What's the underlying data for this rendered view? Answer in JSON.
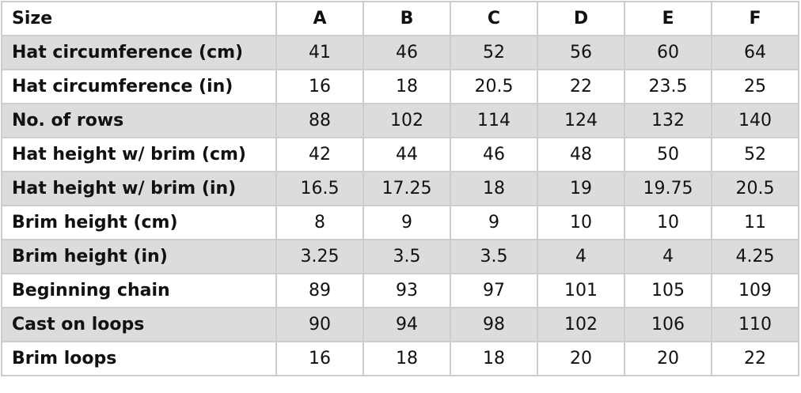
{
  "table": {
    "header": [
      "Size",
      "A",
      "B",
      "C",
      "D",
      "E",
      "F"
    ],
    "rows": [
      {
        "label": "Hat circumference (cm)",
        "values": [
          "41",
          "46",
          "52",
          "56",
          "60",
          "64"
        ]
      },
      {
        "label": "Hat circumference (in)",
        "values": [
          "16",
          "18",
          "20.5",
          "22",
          "23.5",
          "25"
        ]
      },
      {
        "label": "No. of rows",
        "values": [
          "88",
          "102",
          "114",
          "124",
          "132",
          "140"
        ]
      },
      {
        "label": "Hat height w/ brim (cm)",
        "values": [
          "42",
          "44",
          "46",
          "48",
          "50",
          "52"
        ]
      },
      {
        "label": "Hat height w/ brim (in)",
        "values": [
          "16.5",
          "17.25",
          "18",
          "19",
          "19.75",
          "20.5"
        ]
      },
      {
        "label": "Brim height (cm)",
        "values": [
          "8",
          "9",
          "9",
          "10",
          "10",
          "11"
        ]
      },
      {
        "label": "Brim height (in)",
        "values": [
          "3.25",
          "3.5",
          "3.5",
          "4",
          "4",
          "4.25"
        ]
      },
      {
        "label": "Beginning chain",
        "values": [
          "89",
          "93",
          "97",
          "101",
          "105",
          "109"
        ]
      },
      {
        "label": "Cast on loops",
        "values": [
          "90",
          "94",
          "98",
          "102",
          "106",
          "110"
        ]
      },
      {
        "label": "Brim loops",
        "values": [
          "16",
          "18",
          "18",
          "20",
          "20",
          "22"
        ]
      }
    ]
  },
  "colors": {
    "shaded_row": "#dcdcdc",
    "border": "#cdcdcd"
  }
}
